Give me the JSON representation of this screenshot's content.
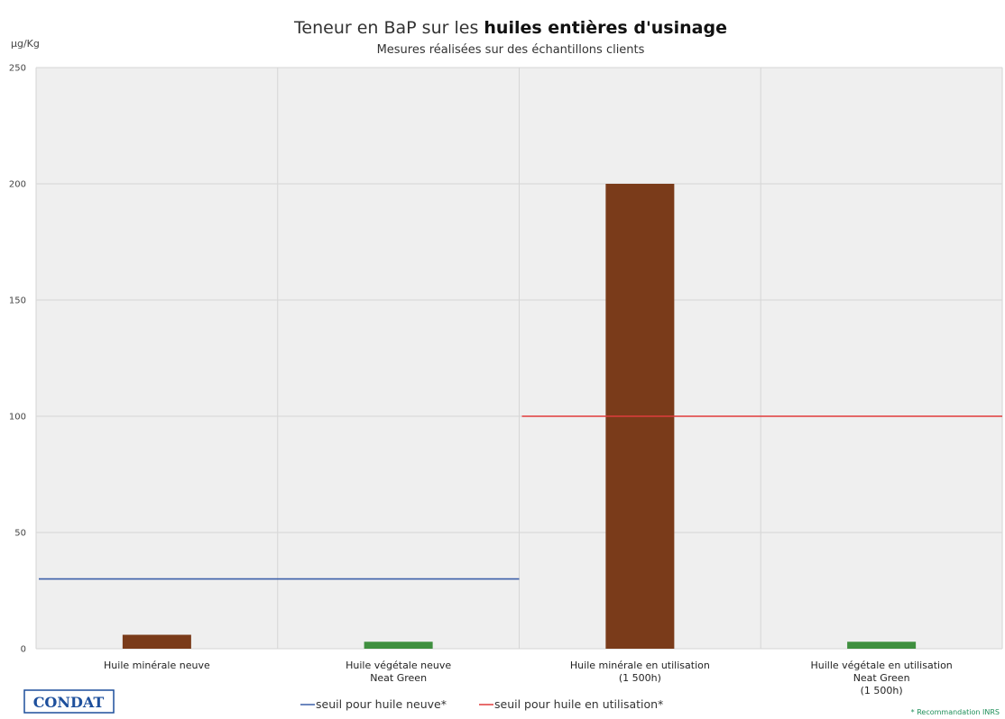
{
  "header": {
    "title_plain": "Teneur en BaP sur les ",
    "title_bold": "huiles entières d'usinage",
    "subtitle": "Mesures réalisées sur des échantillons clients",
    "unit": "µg/Kg"
  },
  "chart_data": {
    "type": "bar",
    "title": "Teneur en BaP sur les huiles entières d'usinage",
    "subtitle": "Mesures réalisées sur des échantillons clients",
    "ylabel": "µg/Kg",
    "ylim": [
      0,
      250
    ],
    "yticks": [
      0,
      50,
      100,
      150,
      200,
      250
    ],
    "grid": true,
    "categories": [
      [
        "Huile minérale neuve"
      ],
      [
        "Huile végétale neuve",
        "Neat Green"
      ],
      [
        "Huile minérale en utilisation",
        "(1 500h)"
      ],
      [
        "Huille végétale en utilisation",
        "Neat Green",
        "(1 500h)"
      ]
    ],
    "values": [
      6,
      3,
      200,
      3
    ],
    "bar_colors": [
      "#7a3b1a",
      "#3f8f3f",
      "#7a3b1a",
      "#3f8f3f"
    ],
    "thresholds": [
      {
        "name": "seuil pour huile neuve*",
        "value": 30,
        "from_category": 0,
        "to_category": 1,
        "color": "#3b5fa8"
      },
      {
        "name": "seuil pour huile en utilisation*",
        "value": 100,
        "from_category": 2,
        "to_category": 3,
        "color": "#e03c3c"
      }
    ],
    "legend_position": "bottom"
  },
  "legend": {
    "neuve": "seuil pour huile neuve*",
    "utilisation": "seuil pour huile en utilisation*"
  },
  "footer": {
    "logo": "CONDAT",
    "note": "* Recommandation INRS"
  }
}
